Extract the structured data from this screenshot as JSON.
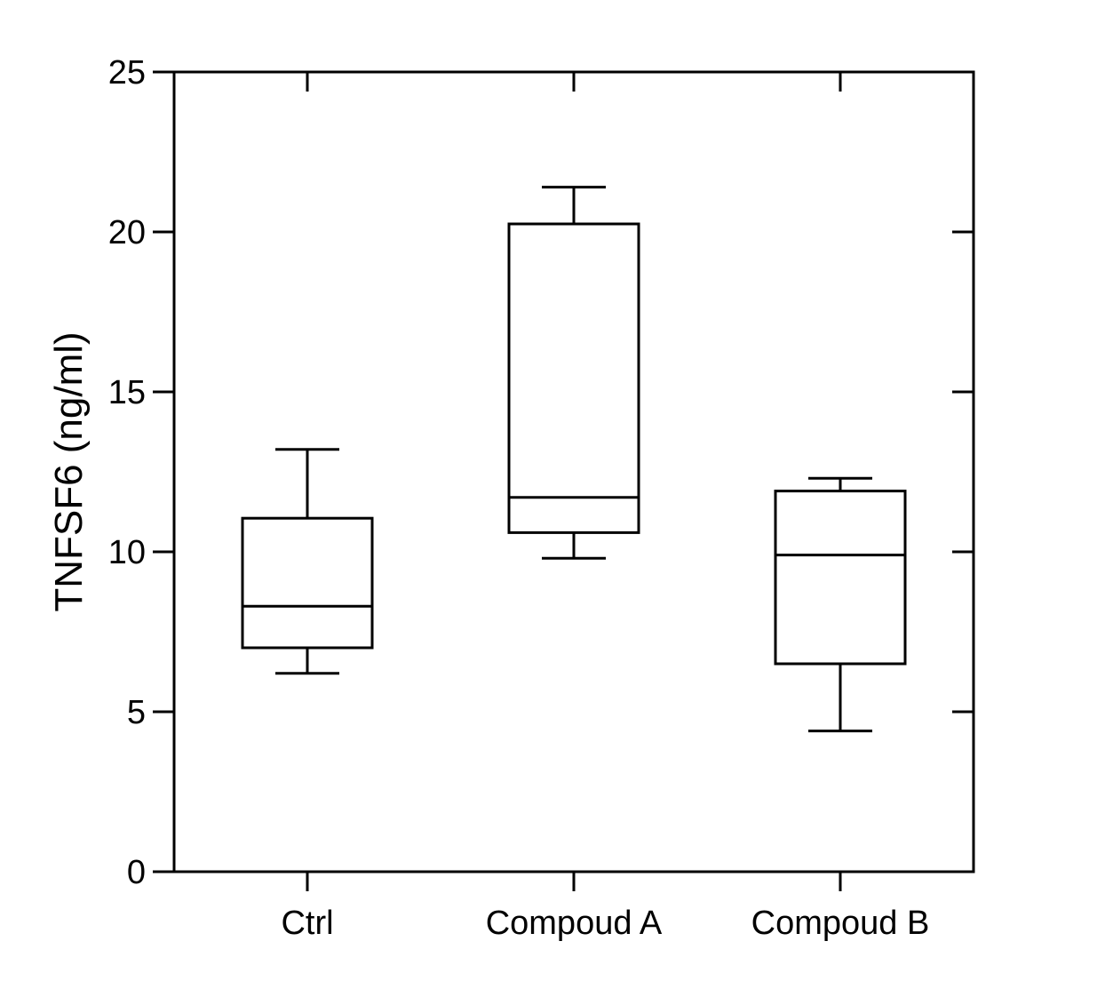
{
  "chart_data": {
    "type": "box",
    "ylabel": "TNFSF6  (ng/ml)",
    "xlabel": "",
    "ylim": [
      0,
      25
    ],
    "yticks": [
      0,
      5,
      10,
      15,
      20,
      25
    ],
    "yticklabels": [
      "0",
      "5",
      "10",
      "15",
      "20",
      "25"
    ],
    "categories": [
      "Ctrl",
      "Compoud A",
      "Compoud B"
    ],
    "boxes": [
      {
        "category": "Ctrl",
        "min": 6.2,
        "q1": 7.0,
        "median": 8.3,
        "q3": 11.05,
        "max": 13.2
      },
      {
        "category": "Compoud A",
        "min": 9.8,
        "q1": 10.6,
        "median": 11.7,
        "q3": 20.25,
        "max": 21.4
      },
      {
        "category": "Compoud B",
        "min": 4.4,
        "q1": 6.5,
        "median": 9.9,
        "q3": 11.9,
        "max": 12.3
      }
    ],
    "grid": false,
    "colors": {
      "stroke": "#000000",
      "fill": "#ffffff"
    }
  }
}
